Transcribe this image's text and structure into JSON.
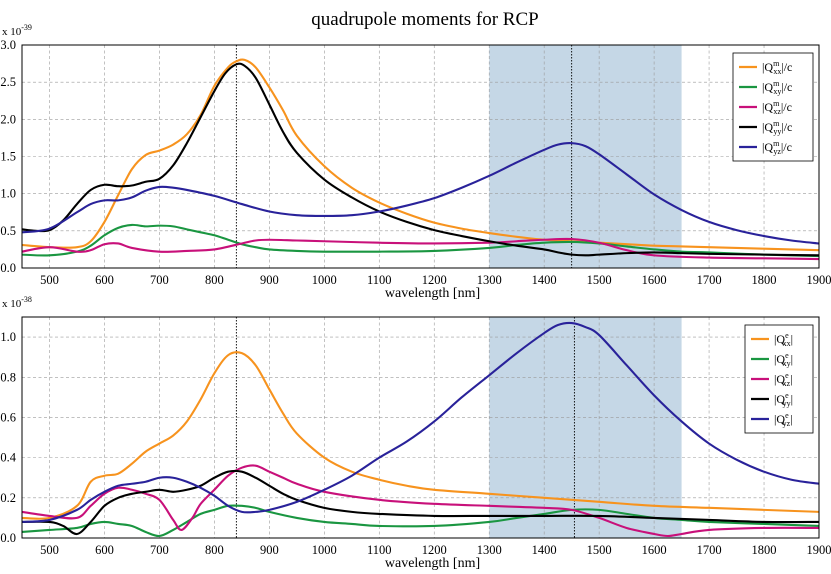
{
  "figure_title": "quadrupole moments for RCP",
  "colors": {
    "orange": "#f7931e",
    "green": "#1a9641",
    "magenta": "#c8107a",
    "black": "#000000",
    "blue": "#29229a",
    "shade": "#c5d7e6"
  },
  "chart_data": [
    {
      "type": "line",
      "title": "quadrupole moments for RCP",
      "xlabel": "wavelength [nm]",
      "ylabel": "",
      "scale_label": "x 10",
      "scale_exp": "-39",
      "xlim": [
        450,
        1900
      ],
      "ylim": [
        0,
        3.0
      ],
      "xticks": [
        500,
        600,
        700,
        800,
        900,
        1000,
        1100,
        1200,
        1300,
        1400,
        1500,
        1600,
        1700,
        1800,
        1900
      ],
      "yticks": [
        0,
        0.5,
        1.0,
        1.5,
        2.0,
        2.5,
        3.0
      ],
      "ytick_labels": [
        "0.0",
        "0.5",
        "1.0",
        "1.5",
        "2.0",
        "2.5",
        "3.0"
      ],
      "grid": true,
      "legend_position": "top-right",
      "shaded_region": [
        1300,
        1650
      ],
      "vlines": [
        840,
        1450
      ],
      "series": [
        {
          "name": "|Qm_xx|/c",
          "base": "|Q",
          "sup": "m",
          "sub": "xx",
          "suffix": "|/c",
          "color": "orange",
          "x": [
            450,
            500,
            550,
            575,
            600,
            625,
            650,
            675,
            700,
            725,
            750,
            775,
            800,
            825,
            840,
            855,
            875,
            900,
            925,
            950,
            1000,
            1050,
            1100,
            1150,
            1200,
            1250,
            1300,
            1350,
            1400,
            1450,
            1500,
            1550,
            1600,
            1650,
            1700,
            1750,
            1800,
            1850,
            1900
          ],
          "y": [
            0.31,
            0.28,
            0.28,
            0.36,
            0.62,
            0.98,
            1.33,
            1.52,
            1.58,
            1.66,
            1.8,
            2.06,
            2.45,
            2.7,
            2.78,
            2.8,
            2.7,
            2.43,
            2.12,
            1.78,
            1.37,
            1.08,
            0.88,
            0.73,
            0.61,
            0.53,
            0.47,
            0.42,
            0.38,
            0.36,
            0.34,
            0.32,
            0.3,
            0.29,
            0.28,
            0.27,
            0.26,
            0.25,
            0.24
          ]
        },
        {
          "name": "|Qm_xy|/c",
          "base": "|Q",
          "sup": "m",
          "sub": "xy",
          "suffix": "|/c",
          "color": "green",
          "x": [
            450,
            500,
            550,
            575,
            600,
            625,
            650,
            675,
            700,
            725,
            750,
            775,
            800,
            825,
            850,
            875,
            900,
            950,
            1000,
            1050,
            1100,
            1200,
            1300,
            1350,
            1400,
            1450,
            1500,
            1550,
            1600,
            1650,
            1700,
            1800,
            1900
          ],
          "y": [
            0.18,
            0.17,
            0.22,
            0.3,
            0.44,
            0.54,
            0.58,
            0.56,
            0.57,
            0.56,
            0.52,
            0.48,
            0.44,
            0.38,
            0.32,
            0.28,
            0.25,
            0.23,
            0.22,
            0.22,
            0.22,
            0.23,
            0.27,
            0.31,
            0.34,
            0.35,
            0.33,
            0.29,
            0.25,
            0.22,
            0.21,
            0.18,
            0.16
          ]
        },
        {
          "name": "|Qm_xz|/c",
          "base": "|Q",
          "sup": "m",
          "sub": "xz",
          "suffix": "|/c",
          "color": "magenta",
          "x": [
            450,
            500,
            550,
            575,
            600,
            625,
            650,
            700,
            750,
            800,
            850,
            875,
            900,
            950,
            1000,
            1100,
            1200,
            1300,
            1350,
            1400,
            1450,
            1500,
            1550,
            1600,
            1700,
            1800,
            1900
          ],
          "y": [
            0.22,
            0.28,
            0.22,
            0.24,
            0.32,
            0.33,
            0.27,
            0.22,
            0.23,
            0.25,
            0.33,
            0.37,
            0.38,
            0.37,
            0.36,
            0.34,
            0.33,
            0.34,
            0.36,
            0.38,
            0.39,
            0.34,
            0.24,
            0.17,
            0.14,
            0.13,
            0.12
          ]
        },
        {
          "name": "|Qm_yy|/c",
          "base": "|Q",
          "sup": "m",
          "sub": "yy",
          "suffix": "|/c",
          "color": "black",
          "x": [
            450,
            475,
            500,
            525,
            550,
            575,
            600,
            625,
            650,
            675,
            700,
            725,
            750,
            775,
            800,
            820,
            840,
            855,
            875,
            900,
            925,
            950,
            1000,
            1050,
            1100,
            1150,
            1200,
            1250,
            1300,
            1350,
            1400,
            1425,
            1450,
            1475,
            1500,
            1550,
            1600,
            1650,
            1700,
            1800,
            1900
          ],
          "y": [
            0.52,
            0.5,
            0.51,
            0.64,
            0.86,
            1.05,
            1.12,
            1.1,
            1.11,
            1.16,
            1.2,
            1.38,
            1.68,
            2.03,
            2.38,
            2.62,
            2.74,
            2.72,
            2.56,
            2.2,
            1.83,
            1.55,
            1.19,
            0.95,
            0.76,
            0.62,
            0.51,
            0.43,
            0.36,
            0.3,
            0.25,
            0.21,
            0.18,
            0.17,
            0.18,
            0.2,
            0.21,
            0.2,
            0.19,
            0.18,
            0.17
          ]
        },
        {
          "name": "|Qm_yz|/c",
          "base": "|Q",
          "sup": "m",
          "sub": "yz",
          "suffix": "|/c",
          "color": "blue",
          "x": [
            450,
            500,
            550,
            575,
            600,
            625,
            650,
            675,
            700,
            725,
            750,
            800,
            850,
            900,
            950,
            1000,
            1050,
            1100,
            1150,
            1200,
            1250,
            1300,
            1350,
            1400,
            1425,
            1450,
            1475,
            1500,
            1550,
            1600,
            1650,
            1700,
            1750,
            1800,
            1850,
            1900
          ],
          "y": [
            0.48,
            0.53,
            0.75,
            0.86,
            0.91,
            0.91,
            0.95,
            1.04,
            1.09,
            1.08,
            1.05,
            0.97,
            0.86,
            0.76,
            0.71,
            0.7,
            0.71,
            0.76,
            0.84,
            0.94,
            1.08,
            1.24,
            1.42,
            1.59,
            1.66,
            1.68,
            1.64,
            1.53,
            1.26,
            0.99,
            0.78,
            0.62,
            0.51,
            0.43,
            0.37,
            0.33
          ]
        }
      ]
    },
    {
      "type": "line",
      "title": "",
      "xlabel": "wavelength [nm]",
      "ylabel": "",
      "scale_label": "x 10",
      "scale_exp": "-38",
      "xlim": [
        450,
        1900
      ],
      "ylim": [
        0,
        1.1
      ],
      "xticks": [
        500,
        600,
        700,
        800,
        900,
        1000,
        1100,
        1200,
        1300,
        1400,
        1500,
        1600,
        1700,
        1800,
        1900
      ],
      "yticks": [
        0,
        0.2,
        0.4,
        0.6,
        0.8,
        1.0
      ],
      "ytick_labels": [
        "0.0",
        "0.2",
        "0.4",
        "0.6",
        "0.8",
        "1.0"
      ],
      "grid": true,
      "legend_position": "top-right",
      "shaded_region": [
        1300,
        1650
      ],
      "vlines": [
        840,
        1455
      ],
      "series": [
        {
          "name": "|Qe_xx|",
          "base": "|Q",
          "sup": "e",
          "sub": "xx",
          "suffix": "|",
          "color": "orange",
          "x": [
            450,
            500,
            550,
            575,
            600,
            625,
            650,
            675,
            700,
            725,
            750,
            775,
            800,
            825,
            850,
            875,
            900,
            925,
            950,
            1000,
            1050,
            1100,
            1150,
            1200,
            1300,
            1400,
            1500,
            1600,
            1700,
            1800,
            1900
          ],
          "y": [
            0.1,
            0.1,
            0.16,
            0.28,
            0.31,
            0.32,
            0.37,
            0.43,
            0.47,
            0.51,
            0.58,
            0.69,
            0.82,
            0.91,
            0.92,
            0.86,
            0.74,
            0.62,
            0.52,
            0.4,
            0.33,
            0.29,
            0.26,
            0.24,
            0.22,
            0.2,
            0.18,
            0.16,
            0.15,
            0.14,
            0.13
          ]
        },
        {
          "name": "|Qe_xy|",
          "base": "|Q",
          "sup": "e",
          "sub": "xy",
          "suffix": "|",
          "color": "green",
          "x": [
            450,
            500,
            550,
            575,
            600,
            625,
            650,
            675,
            700,
            725,
            750,
            775,
            800,
            825,
            850,
            875,
            900,
            950,
            1000,
            1050,
            1100,
            1200,
            1300,
            1350,
            1400,
            1450,
            1500,
            1550,
            1600,
            1650,
            1700,
            1800,
            1900
          ],
          "y": [
            0.03,
            0.04,
            0.05,
            0.07,
            0.08,
            0.07,
            0.06,
            0.03,
            0.01,
            0.04,
            0.08,
            0.12,
            0.14,
            0.16,
            0.16,
            0.15,
            0.13,
            0.1,
            0.08,
            0.07,
            0.06,
            0.06,
            0.08,
            0.1,
            0.12,
            0.14,
            0.14,
            0.12,
            0.1,
            0.09,
            0.08,
            0.07,
            0.06
          ]
        },
        {
          "name": "|Qe_xz|",
          "base": "|Q",
          "sup": "e",
          "sub": "xz",
          "suffix": "|",
          "color": "magenta",
          "x": [
            450,
            500,
            550,
            575,
            600,
            625,
            650,
            675,
            700,
            725,
            740,
            760,
            775,
            800,
            825,
            850,
            875,
            900,
            925,
            950,
            1000,
            1100,
            1200,
            1300,
            1350,
            1400,
            1450,
            1500,
            1550,
            1600,
            1625,
            1650,
            1700,
            1800,
            1900
          ],
          "y": [
            0.13,
            0.11,
            0.1,
            0.16,
            0.22,
            0.25,
            0.24,
            0.22,
            0.19,
            0.09,
            0.04,
            0.1,
            0.17,
            0.24,
            0.31,
            0.35,
            0.36,
            0.33,
            0.3,
            0.27,
            0.23,
            0.19,
            0.17,
            0.16,
            0.155,
            0.15,
            0.14,
            0.1,
            0.05,
            0.02,
            0.01,
            0.02,
            0.04,
            0.05,
            0.05
          ]
        },
        {
          "name": "|Qe_yy|",
          "base": "|Q",
          "sup": "e",
          "sub": "yy",
          "suffix": "|",
          "color": "black",
          "x": [
            450,
            500,
            525,
            550,
            575,
            600,
            625,
            650,
            675,
            700,
            725,
            750,
            775,
            800,
            825,
            850,
            875,
            900,
            925,
            950,
            1000,
            1050,
            1100,
            1200,
            1300,
            1400,
            1500,
            1600,
            1700,
            1800,
            1900
          ],
          "y": [
            0.08,
            0.08,
            0.06,
            0.02,
            0.08,
            0.16,
            0.2,
            0.22,
            0.23,
            0.24,
            0.23,
            0.24,
            0.26,
            0.3,
            0.33,
            0.33,
            0.3,
            0.26,
            0.22,
            0.19,
            0.15,
            0.13,
            0.12,
            0.11,
            0.11,
            0.11,
            0.11,
            0.1,
            0.09,
            0.08,
            0.08
          ]
        },
        {
          "name": "|Qe_yz|",
          "base": "|Q",
          "sup": "e",
          "sub": "yz",
          "suffix": "|",
          "color": "blue",
          "x": [
            450,
            500,
            550,
            575,
            600,
            625,
            650,
            675,
            700,
            725,
            750,
            775,
            800,
            825,
            850,
            875,
            900,
            950,
            1000,
            1050,
            1100,
            1150,
            1200,
            1250,
            1300,
            1350,
            1400,
            1425,
            1450,
            1475,
            1500,
            1550,
            1600,
            1650,
            1700,
            1750,
            1800,
            1850,
            1900
          ],
          "y": [
            0.08,
            0.09,
            0.14,
            0.19,
            0.23,
            0.26,
            0.27,
            0.28,
            0.3,
            0.3,
            0.28,
            0.25,
            0.21,
            0.16,
            0.13,
            0.13,
            0.14,
            0.18,
            0.24,
            0.31,
            0.4,
            0.48,
            0.58,
            0.7,
            0.81,
            0.92,
            1.02,
            1.06,
            1.07,
            1.05,
            1.01,
            0.86,
            0.71,
            0.58,
            0.47,
            0.39,
            0.33,
            0.29,
            0.27
          ]
        }
      ]
    }
  ]
}
